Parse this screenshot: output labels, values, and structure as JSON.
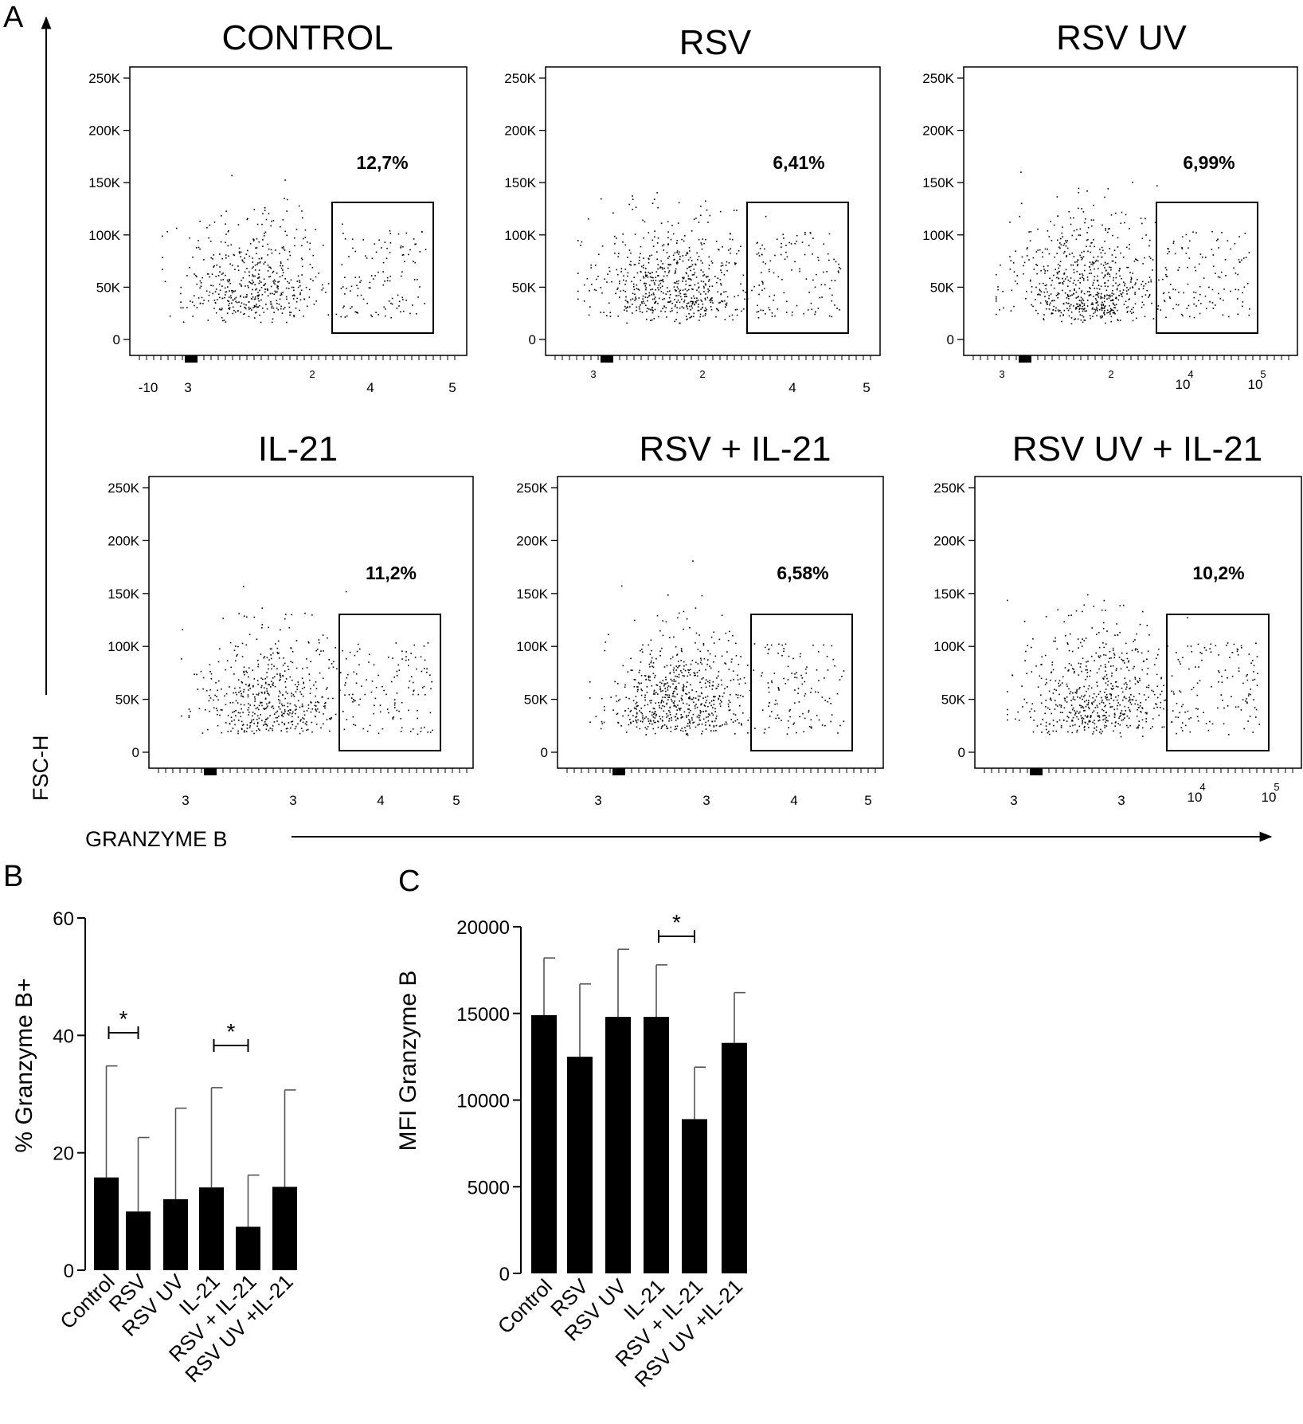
{
  "figure": {
    "panel_letters": [
      "A",
      "B",
      "C"
    ],
    "shared_axes": {
      "y_label": "FSC-H",
      "x_label": "GRANZYME  B"
    }
  },
  "chart_data": [
    {
      "type": "scatter",
      "panel": "A",
      "title": "CONTROL",
      "gate_percent": "12,7%",
      "y_ticks": [
        "250K",
        "200K",
        "150K",
        "100K",
        "50K",
        "0"
      ],
      "x_ticks": [
        "-10",
        "3",
        "2",
        "4",
        "5"
      ]
    },
    {
      "type": "scatter",
      "panel": "A",
      "title": "RSV",
      "gate_percent": "6,41%",
      "y_ticks": [
        "250K",
        "200K",
        "150K",
        "100K",
        "50K",
        "0"
      ],
      "x_ticks": [
        "3",
        "2",
        "4",
        "5"
      ]
    },
    {
      "type": "scatter",
      "panel": "A",
      "title": "RSV UV",
      "gate_percent": "6,99%",
      "y_ticks": [
        "250K",
        "200K",
        "150K",
        "100K",
        "50K",
        "0"
      ],
      "x_ticks": [
        "3",
        "2",
        "10",
        "4",
        "10",
        "5"
      ]
    },
    {
      "type": "scatter",
      "panel": "A",
      "title": "IL-21",
      "gate_percent": "11,2%",
      "y_ticks": [
        "250K",
        "200K",
        "150K",
        "100K",
        "50K",
        "0"
      ],
      "x_ticks": [
        "3",
        "3",
        "4",
        "5"
      ]
    },
    {
      "type": "scatter",
      "panel": "A",
      "title": "RSV + IL-21",
      "gate_percent": "6,58%",
      "y_ticks": [
        "250K",
        "200K",
        "150K",
        "100K",
        "50K",
        "0"
      ],
      "x_ticks": [
        "3",
        "3",
        "4",
        "5"
      ]
    },
    {
      "type": "scatter",
      "panel": "A",
      "title": "RSV UV + IL-21",
      "gate_percent": "10,2%",
      "y_ticks": [
        "250K",
        "200K",
        "150K",
        "100K",
        "50K",
        "0"
      ],
      "x_ticks": [
        "3",
        "3",
        "10",
        "4",
        "10",
        "5"
      ]
    },
    {
      "type": "bar",
      "panel": "B",
      "ylabel": "% Granzyme B+",
      "ylim": [
        0,
        60
      ],
      "yticks": [
        0,
        20,
        40,
        60
      ],
      "categories": [
        "Control",
        "RSV",
        "RSV UV",
        "IL-21",
        "RSV + IL-21",
        "RSV UV +IL-21"
      ],
      "values": [
        15.8,
        10.0,
        12.1,
        14.1,
        7.4,
        14.2
      ],
      "error_upper": [
        34.8,
        22.6,
        27.6,
        31.1,
        16.2,
        30.7
      ],
      "significance": [
        {
          "between": [
            "Control",
            "RSV"
          ],
          "label": "*"
        },
        {
          "between": [
            "IL-21",
            "RSV + IL-21"
          ],
          "label": "*"
        }
      ]
    },
    {
      "type": "bar",
      "panel": "C",
      "ylabel": "MFI Granzyme B",
      "ylim": [
        0,
        20000
      ],
      "yticks": [
        0,
        5000,
        10000,
        15000,
        20000
      ],
      "categories": [
        "Control",
        "RSV",
        "RSV UV",
        "IL-21",
        "RSV + IL-21",
        "RSV UV +IL-21"
      ],
      "values": [
        14900,
        12500,
        14800,
        14800,
        8900,
        13300
      ],
      "error_upper": [
        18200,
        16700,
        18700,
        17800,
        11900,
        16200
      ],
      "significance": [
        {
          "between": [
            "IL-21",
            "RSV + IL-21"
          ],
          "label": "*"
        }
      ]
    }
  ]
}
